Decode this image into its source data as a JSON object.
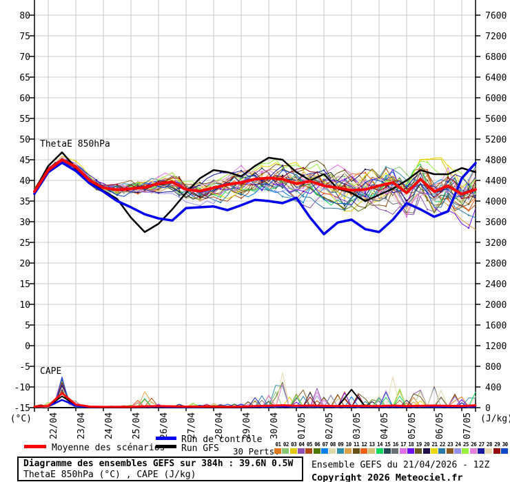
{
  "legend": {
    "mean_label": "Moyenne des scénarios",
    "control_label": "Run de contrôle",
    "gfs_label": "Run GFS",
    "perts_label": "30 Perts.",
    "mean_color": "#ff0000",
    "control_color": "#0000ee",
    "gfs_color": "#000000"
  },
  "info_box": {
    "line1": "Diagramme des ensembles GEFS sur 384h : 39.6N 0.5W",
    "line2": "ThetaE 850hPa (°C) , CAPE (J/kg)"
  },
  "footer_right": {
    "line1": "Ensemble GEFS du 21/04/2026 - 12Z",
    "line2": "Copyright 2026 Meteociel.fr"
  },
  "chart_data": {
    "type": "line",
    "title": "Diagramme des ensembles GEFS sur 384h : 39.6N 0.5W",
    "inplot_labels": {
      "thetae": "ThetaE 850hPa",
      "cape": "CAPE"
    },
    "left_axis": {
      "unit": "(°C)",
      "min": -15,
      "max": 80,
      "step": 5
    },
    "right_axis": {
      "unit": "(J/kg)",
      "min": 0,
      "max": 7600,
      "step": 400
    },
    "grid_color": "#c9c9c9",
    "x_ticks": [
      "22/04",
      "23/04",
      "24/04",
      "25/04",
      "26/04",
      "27/04",
      "28/04",
      "29/04",
      "30/04",
      "01/05",
      "02/05",
      "03/05",
      "04/05",
      "05/05",
      "06/05",
      "07/05"
    ],
    "thetae": {
      "mean": [
        37.3,
        42.5,
        45.0,
        43.3,
        40.0,
        38.2,
        37.7,
        38.0,
        38.3,
        39.2,
        39.6,
        37.8,
        37.4,
        38.2,
        39.0,
        39.5,
        40.3,
        40.6,
        40.3,
        39.2,
        39.8,
        38.7,
        38.2,
        37.6,
        37.8,
        38.7,
        39.5,
        37.0,
        40.3,
        37.3,
        38.7,
        36.7,
        37.8
      ],
      "control": [
        36.8,
        42.0,
        44.3,
        42.3,
        39.3,
        37.3,
        35.0,
        33.5,
        31.8,
        30.8,
        30.3,
        33.3,
        33.5,
        33.7,
        32.8,
        34.0,
        35.3,
        35.0,
        34.5,
        35.8,
        31.0,
        27.0,
        29.8,
        30.5,
        28.2,
        27.5,
        30.5,
        34.5,
        33.0,
        31.2,
        32.5,
        40.5,
        44.2
      ],
      "gfs": [
        37.5,
        43.5,
        46.8,
        43.0,
        39.5,
        37.5,
        35.5,
        31.0,
        27.5,
        29.5,
        33.0,
        37.0,
        40.5,
        42.5,
        42.0,
        41.0,
        43.5,
        45.5,
        45.0,
        42.0,
        40.0,
        41.5,
        38.0,
        37.0,
        35.0,
        36.5,
        38.0,
        40.0,
        42.5,
        41.5,
        41.5,
        43.0,
        42.0
      ],
      "env_min": [
        36,
        40,
        43,
        39,
        36,
        34,
        31,
        28,
        26,
        27,
        28,
        29,
        30,
        29,
        28,
        30,
        31,
        29,
        28,
        27,
        28,
        26,
        27,
        26,
        27,
        26,
        28,
        27,
        25,
        27,
        28,
        24,
        20
      ],
      "env_max": [
        39,
        45,
        48,
        46,
        44,
        44,
        45,
        45,
        44,
        43,
        43,
        43,
        44,
        45,
        45,
        46,
        47,
        47,
        48,
        47,
        47,
        46,
        46,
        47,
        46,
        47,
        47,
        46,
        47,
        46,
        47,
        46,
        47
      ]
    },
    "cape": {
      "mean": [
        20,
        30,
        280,
        60,
        20,
        15,
        15,
        15,
        25,
        30,
        25,
        20,
        20,
        20,
        15,
        20,
        30,
        35,
        45,
        35,
        40,
        35,
        30,
        35,
        30,
        30,
        40,
        30,
        35,
        40,
        35,
        30,
        45
      ],
      "control": [
        15,
        25,
        150,
        40,
        10,
        10,
        10,
        10,
        15,
        15,
        10,
        10,
        10,
        15,
        10,
        10,
        15,
        20,
        25,
        20,
        25,
        20,
        15,
        20,
        15,
        15,
        20,
        15,
        20,
        20,
        15,
        15,
        25
      ],
      "gfs": [
        15,
        25,
        220,
        50,
        10,
        10,
        10,
        10,
        15,
        15,
        10,
        15,
        15,
        15,
        10,
        15,
        20,
        25,
        30,
        25,
        30,
        25,
        20,
        350,
        20,
        20,
        25,
        20,
        25,
        25,
        20,
        20,
        30
      ],
      "env_max": [
        40,
        120,
        650,
        150,
        40,
        30,
        40,
        50,
        330,
        80,
        50,
        130,
        80,
        100,
        90,
        120,
        220,
        280,
        730,
        300,
        460,
        350,
        300,
        380,
        200,
        250,
        630,
        250,
        380,
        620,
        450,
        250,
        520
      ]
    },
    "members": [
      {
        "num": "01",
        "color": "#e07820"
      },
      {
        "num": "02",
        "color": "#88c870"
      },
      {
        "num": "03",
        "color": "#e3c800"
      },
      {
        "num": "04",
        "color": "#9050b0"
      },
      {
        "num": "05",
        "color": "#b04818"
      },
      {
        "num": "06",
        "color": "#507800"
      },
      {
        "num": "07",
        "color": "#0080f0"
      },
      {
        "num": "08",
        "color": "#ded8a8"
      },
      {
        "num": "09",
        "color": "#3090a8"
      },
      {
        "num": "10",
        "color": "#e0a048"
      },
      {
        "num": "11",
        "color": "#685018"
      },
      {
        "num": "12",
        "color": "#f06018"
      },
      {
        "num": "13",
        "color": "#d0c078"
      },
      {
        "num": "14",
        "color": "#10d860"
      },
      {
        "num": "15",
        "color": "#284858"
      },
      {
        "num": "16",
        "color": "#687078"
      },
      {
        "num": "17",
        "color": "#e070e8"
      },
      {
        "num": "18",
        "color": "#7010f0"
      },
      {
        "num": "19",
        "color": "#6b5a20"
      },
      {
        "num": "20",
        "color": "#201048"
      },
      {
        "num": "21",
        "color": "#e8d800"
      },
      {
        "num": "22",
        "color": "#2878a8"
      },
      {
        "num": "23",
        "color": "#8b5a20"
      },
      {
        "num": "24",
        "color": "#9890e8"
      },
      {
        "num": "25",
        "color": "#98f040"
      },
      {
        "num": "26",
        "color": "#e080d8"
      },
      {
        "num": "27",
        "color": "#1818a0"
      },
      {
        "num": "28",
        "color": "#e8d8b0"
      },
      {
        "num": "29",
        "color": "#980808"
      },
      {
        "num": "30",
        "color": "#1048c8"
      }
    ]
  }
}
